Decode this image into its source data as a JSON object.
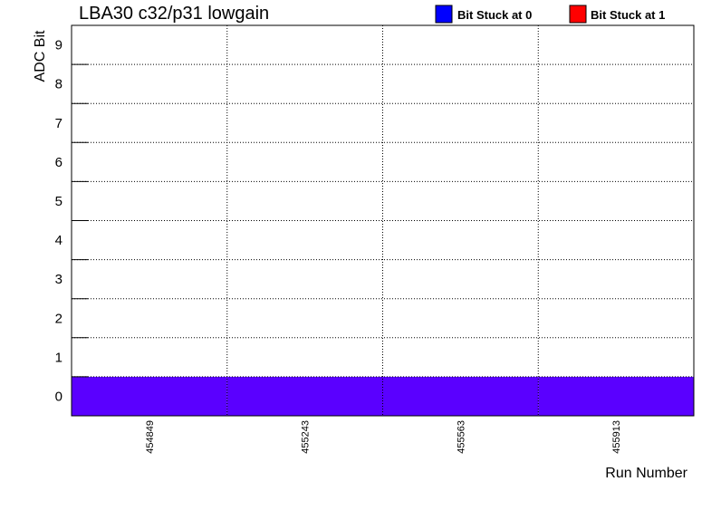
{
  "chart_data": {
    "type": "heatmap",
    "title": "LBA30 c32/p31 lowgain",
    "xlabel": "Run Number",
    "ylabel": "ADC Bit",
    "categories": [
      "454849",
      "455243",
      "455563",
      "455913"
    ],
    "y_ticks": [
      "0",
      "1",
      "2",
      "3",
      "4",
      "5",
      "6",
      "7",
      "8",
      "9"
    ],
    "ylim": [
      0,
      10
    ],
    "grid": true,
    "legend_position": "top-right",
    "legend": [
      {
        "label": "Bit Stuck at 0",
        "color": "#0000ff"
      },
      {
        "label": "Bit Stuck at 1",
        "color": "#ff0000"
      }
    ],
    "cells": [
      {
        "run": "454849",
        "bit": 0,
        "color": "#5a00ff"
      },
      {
        "run": "455243",
        "bit": 0,
        "color": "#5a00ff"
      },
      {
        "run": "455563",
        "bit": 0,
        "color": "#5a00ff"
      },
      {
        "run": "455913",
        "bit": 0,
        "color": "#5a00ff"
      }
    ]
  }
}
